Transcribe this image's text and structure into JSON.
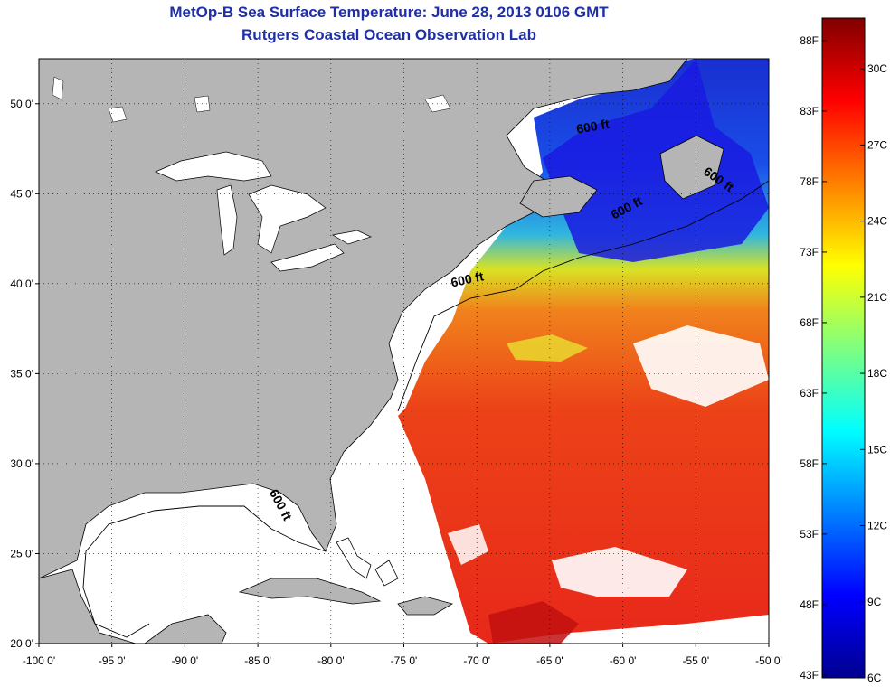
{
  "header": {
    "title": "MetOp-B Sea Surface Temperature:  June 28, 2013 0106 GMT",
    "subtitle": "Rutgers Coastal Ocean Observation Lab"
  },
  "map": {
    "lon_range": [
      -100,
      -50
    ],
    "lat_range": [
      20,
      52.5
    ],
    "lon_ticks": [
      -100,
      -95,
      -90,
      -85,
      -80,
      -75,
      -70,
      -65,
      -60,
      -55,
      -50
    ],
    "lon_tick_labels": [
      "-100 0'",
      "-95 0'",
      "-90 0'",
      "-85 0'",
      "-80 0'",
      "-75 0'",
      "-70 0'",
      "-65 0'",
      "-60 0'",
      "-55 0'",
      "-50 0'"
    ],
    "lat_ticks": [
      20,
      25,
      30,
      35,
      40,
      45,
      50
    ],
    "lat_tick_labels": [
      "20 0'",
      "25 0'",
      "30 0'",
      "35 0'",
      "40 0'",
      "45 0'",
      "50 0'"
    ],
    "grid": "dotted",
    "contour_labels": [
      {
        "text": "600 ft",
        "lon": -70.6,
        "lat": 40.0,
        "angle": -12
      },
      {
        "text": "600 ft",
        "lon": -83.7,
        "lat": 27.6,
        "angle": 62
      },
      {
        "text": "600 ft",
        "lon": -59.6,
        "lat": 44.0,
        "angle": -28
      },
      {
        "text": "600 ft",
        "lon": -53.6,
        "lat": 45.6,
        "angle": 35
      },
      {
        "text": "600 ft",
        "lon": -62.0,
        "lat": 48.5,
        "angle": -10
      }
    ],
    "colors": {
      "land": "#b5b5b5",
      "no_data": "#ffffff",
      "coast": "#000000"
    }
  },
  "colorbar": {
    "fahrenheit_labels": [
      "88F",
      "83F",
      "78F",
      "73F",
      "68F",
      "63F",
      "58F",
      "53F",
      "48F",
      "43F"
    ],
    "fahrenheit_values": [
      88,
      83,
      78,
      73,
      68,
      63,
      58,
      53,
      48,
      43
    ],
    "celsius_labels": [
      "30C",
      "27C",
      "24C",
      "21C",
      "18C",
      "15C",
      "12C",
      "9C",
      "6C"
    ],
    "celsius_values": [
      30,
      27,
      24,
      21,
      18,
      15,
      12,
      9,
      6
    ],
    "range_celsius": [
      6,
      32
    ],
    "colormap": "jet"
  }
}
